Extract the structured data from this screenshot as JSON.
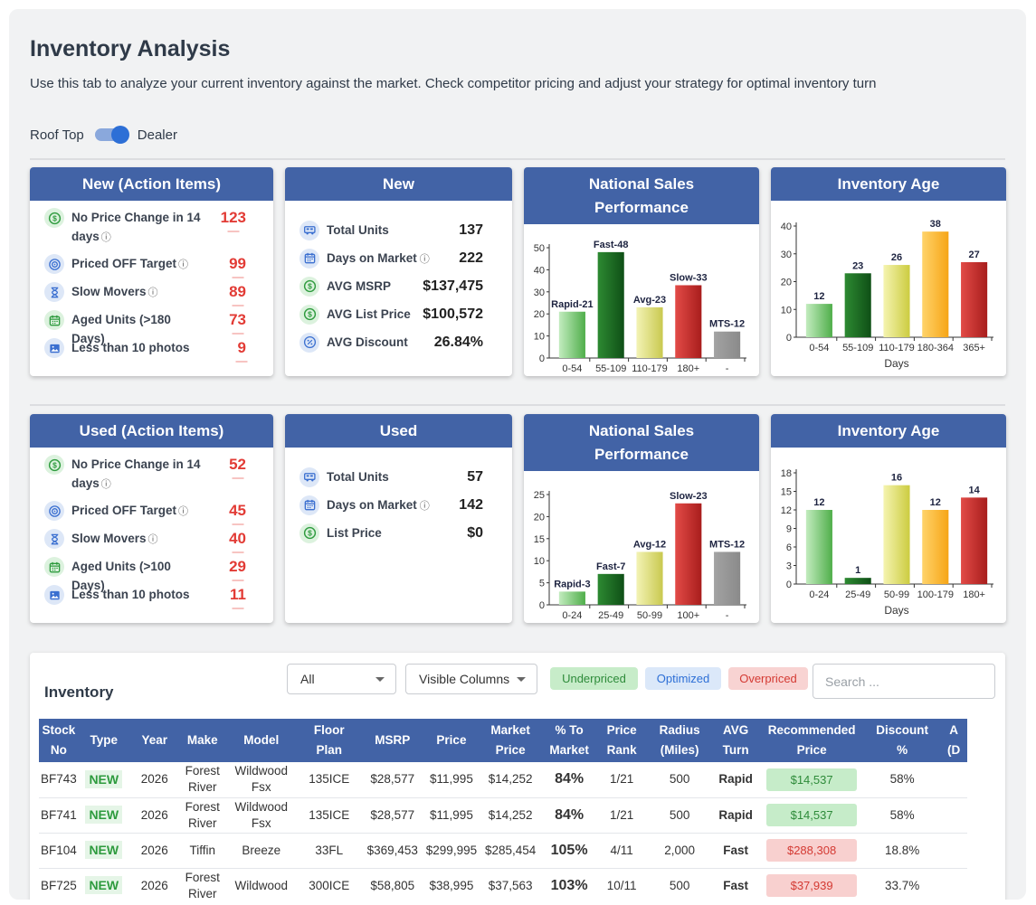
{
  "page": {
    "title": "Inventory Analysis",
    "subtitle": "Use this tab to analyze your current inventory against the market. Check competitor pricing and adjust your strategy for optimal inventory turn",
    "toggle_left": "Roof Top",
    "toggle_right": "Dealer"
  },
  "new_actions": {
    "title": "New (Action Items)",
    "items": [
      {
        "label": "No Price Change in 14 days",
        "value": "123",
        "icon": "dollar-icon",
        "color": "#2e9b3e"
      },
      {
        "label": "Priced OFF Target",
        "value": "99",
        "icon": "target-icon",
        "color": "#3a6fd0"
      },
      {
        "label": "Slow Movers",
        "value": "89",
        "icon": "hourglass-icon",
        "color": "#3a6fd0"
      },
      {
        "label": "Aged Units (>180 Days)",
        "value": "73",
        "icon": "calendar-icon",
        "color": "#2e9b3e"
      },
      {
        "label": "Less than 10 photos",
        "value": "9",
        "icon": "image-icon",
        "color": "#3a6fd0"
      }
    ]
  },
  "new_summary": {
    "title": "New",
    "items": [
      {
        "label": "Total Units",
        "value": "137",
        "icon": "rv-icon"
      },
      {
        "label": "Days on Market",
        "value": "222",
        "icon": "calendar-icon",
        "info": true
      },
      {
        "label": "AVG MSRP",
        "value": "$137,475",
        "icon": "dollar-icon"
      },
      {
        "label": "AVG List Price",
        "value": "$100,572",
        "icon": "dollar-icon"
      },
      {
        "label": "AVG Discount",
        "value": "26.84%",
        "icon": "percent-icon"
      }
    ]
  },
  "used_actions": {
    "title": "Used (Action Items)",
    "items": [
      {
        "label": "No Price Change in 14 days",
        "value": "52",
        "icon": "dollar-icon",
        "color": "#2e9b3e"
      },
      {
        "label": "Priced OFF Target",
        "value": "45",
        "icon": "target-icon",
        "color": "#3a6fd0"
      },
      {
        "label": "Slow Movers",
        "value": "40",
        "icon": "hourglass-icon",
        "color": "#3a6fd0"
      },
      {
        "label": "Aged Units (>100 Days)",
        "value": "29",
        "icon": "calendar-icon",
        "color": "#2e9b3e"
      },
      {
        "label": "Less than 10 photos",
        "value": "11",
        "icon": "image-icon",
        "color": "#3a6fd0"
      }
    ]
  },
  "used_summary": {
    "title": "Used",
    "items": [
      {
        "label": "Total Units",
        "value": "57",
        "icon": "rv-icon"
      },
      {
        "label": "Days on Market",
        "value": "142",
        "icon": "calendar-icon",
        "info": true
      },
      {
        "label": "List Price",
        "value": "$0",
        "icon": "dollar-icon"
      }
    ]
  },
  "chart_data": [
    {
      "id": "new-national",
      "type": "bar",
      "title_line1": "National Sales",
      "title_line2": "Performance",
      "categories": [
        "0-54",
        "55-109",
        "110-179",
        "180+",
        "-"
      ],
      "values": [
        21,
        48,
        23,
        33,
        12
      ],
      "bar_labels": [
        "Rapid-21",
        "Fast-48",
        "Avg-23",
        "Slow-33",
        "MTS-12"
      ],
      "yticks": [
        0,
        10,
        20,
        30,
        40,
        50
      ],
      "ylim": [
        0,
        50
      ],
      "xlabel": "",
      "colors": [
        [
          "#c3ecbf",
          "#4fae4a"
        ],
        [
          "#2d8a32",
          "#0f4f16"
        ],
        [
          "#f3f3b5",
          "#c9c94f"
        ],
        [
          "#e24b47",
          "#a81d1c"
        ],
        [
          "#a3a3a3",
          "#8a8a8a"
        ]
      ]
    },
    {
      "id": "new-age",
      "type": "bar",
      "title_line1": "Inventory Age",
      "title_line2": "",
      "categories": [
        "0-54",
        "55-109",
        "110-179",
        "180-364",
        "365+"
      ],
      "values": [
        12,
        23,
        26,
        38,
        27
      ],
      "bar_labels": [
        "12",
        "23",
        "26",
        "38",
        "27"
      ],
      "yticks": [
        0,
        10,
        20,
        30,
        40
      ],
      "ylim": [
        0,
        40
      ],
      "xlabel": "Days",
      "colors": [
        [
          "#c3ecbf",
          "#4fae4a"
        ],
        [
          "#2d8a32",
          "#0f4f16"
        ],
        [
          "#f5f4b0",
          "#cccc40"
        ],
        [
          "#ffd36a",
          "#f6a516"
        ],
        [
          "#e24b47",
          "#a81d1c"
        ]
      ]
    },
    {
      "id": "used-national",
      "type": "bar",
      "title_line1": "National Sales",
      "title_line2": "Performance",
      "categories": [
        "0-24",
        "25-49",
        "50-99",
        "100+",
        "-"
      ],
      "values": [
        3,
        7,
        12,
        23,
        12
      ],
      "bar_labels": [
        "Rapid-3",
        "Fast-7",
        "Avg-12",
        "Slow-23",
        "MTS-12"
      ],
      "yticks": [
        0,
        5,
        10,
        15,
        20,
        25
      ],
      "ylim": [
        0,
        25
      ],
      "xlabel": "",
      "colors": [
        [
          "#c3ecbf",
          "#4fae4a"
        ],
        [
          "#2d8a32",
          "#0f4f16"
        ],
        [
          "#f3f3b5",
          "#c9c94f"
        ],
        [
          "#e24b47",
          "#a81d1c"
        ],
        [
          "#a3a3a3",
          "#8a8a8a"
        ]
      ]
    },
    {
      "id": "used-age",
      "type": "bar",
      "title_line1": "Inventory Age",
      "title_line2": "",
      "categories": [
        "0-24",
        "25-49",
        "50-99",
        "100-179",
        "180+"
      ],
      "values": [
        12,
        1,
        16,
        12,
        14
      ],
      "bar_labels": [
        "12",
        "1",
        "16",
        "12",
        "14"
      ],
      "yticks": [
        0,
        3,
        6,
        9,
        12,
        15,
        18
      ],
      "ylim": [
        0,
        18
      ],
      "xlabel": "Days",
      "colors": [
        [
          "#c3ecbf",
          "#4fae4a"
        ],
        [
          "#2d8a32",
          "#0f4f16"
        ],
        [
          "#f5f4b0",
          "#cccc40"
        ],
        [
          "#ffd36a",
          "#f6a516"
        ],
        [
          "#e24b47",
          "#a81d1c"
        ]
      ]
    }
  ],
  "inventory": {
    "title": "Inventory",
    "filter_value": "All",
    "columns_button": "Visible Columns",
    "legend": {
      "underpriced": "Underpriced",
      "optimized": "Optimized",
      "overpriced": "Overpriced"
    },
    "search_placeholder": "Search ...",
    "headers": [
      [
        "Stock",
        "No"
      ],
      [
        "Type"
      ],
      [
        "Year"
      ],
      [
        "Make"
      ],
      [
        "Model"
      ],
      [
        "Floor",
        "Plan"
      ],
      [
        "MSRP"
      ],
      [
        "Price"
      ],
      [
        "Market",
        "Price"
      ],
      [
        "% To",
        "Market"
      ],
      [
        "Price",
        "Rank"
      ],
      [
        "Radius",
        "(Miles)"
      ],
      [
        "AVG",
        "Turn"
      ],
      [
        "Recommended",
        "Price"
      ],
      [
        "Discount",
        "%"
      ],
      [
        "A",
        "(D"
      ]
    ],
    "rows": [
      {
        "stock": "BF743",
        "type": "NEW",
        "year": "2026",
        "make": [
          "Forest",
          "River"
        ],
        "model": [
          "Wildwood",
          "Fsx"
        ],
        "floor": "135ICE",
        "msrp": "$28,577",
        "price": "$11,995",
        "market": "$14,252",
        "pct": "84%",
        "rank": "1/21",
        "radius": "500",
        "turn": "Rapid",
        "rec": "$14,537",
        "rec_status": "green",
        "discount": "58%"
      },
      {
        "stock": "BF741",
        "type": "NEW",
        "year": "2026",
        "make": [
          "Forest",
          "River"
        ],
        "model": [
          "Wildwood",
          "Fsx"
        ],
        "floor": "135ICE",
        "msrp": "$28,577",
        "price": "$11,995",
        "market": "$14,252",
        "pct": "84%",
        "rank": "1/21",
        "radius": "500",
        "turn": "Rapid",
        "rec": "$14,537",
        "rec_status": "green",
        "discount": "58%"
      },
      {
        "stock": "BF104",
        "type": "NEW",
        "year": "2026",
        "make": [
          "Tiffin"
        ],
        "model": [
          "Breeze"
        ],
        "floor": "33FL",
        "msrp": "$369,453",
        "price": "$299,995",
        "market": "$285,454",
        "pct": "105%",
        "rank": "4/11",
        "radius": "2,000",
        "turn": "Fast",
        "rec": "$288,308",
        "rec_status": "red",
        "discount": "18.8%"
      },
      {
        "stock": "BF725",
        "type": "NEW",
        "year": "2026",
        "make": [
          "Forest",
          "River"
        ],
        "model": [
          "Wildwood"
        ],
        "floor": "300ICE",
        "msrp": "$58,805",
        "price": "$38,995",
        "market": "$37,563",
        "pct": "103%",
        "rank": "10/11",
        "radius": "500",
        "turn": "Fast",
        "rec": "$37,939",
        "rec_status": "red",
        "discount": "33.7%"
      }
    ]
  }
}
